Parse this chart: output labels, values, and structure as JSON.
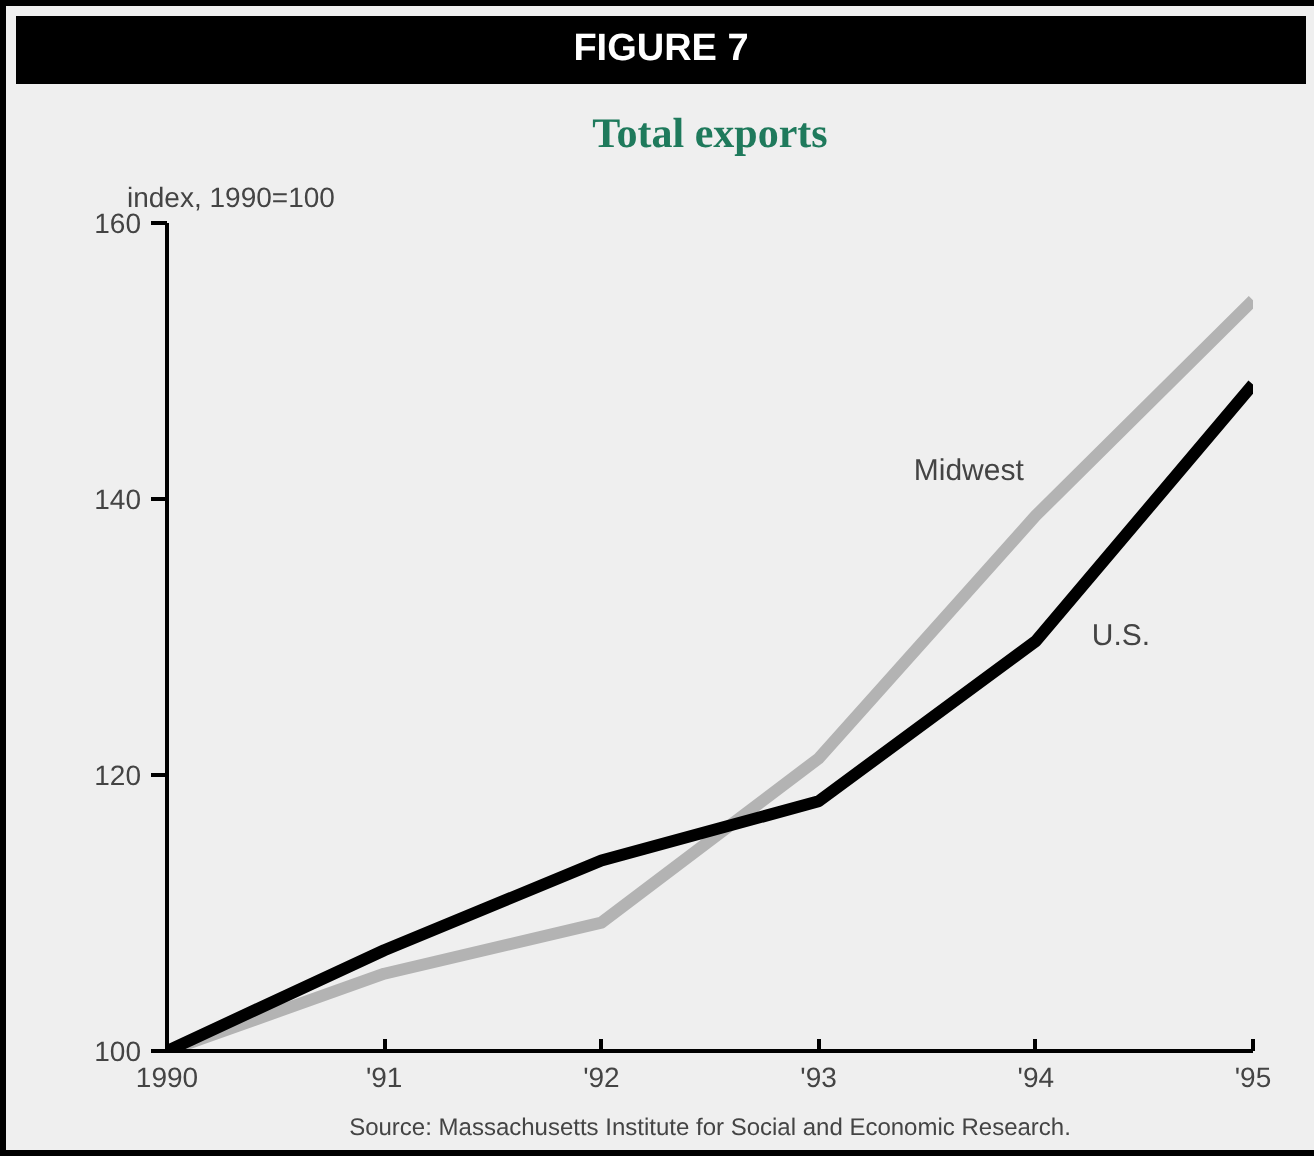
{
  "chart_data": {
    "type": "line",
    "title": "FIGURE 7",
    "subtitle": "Total exports",
    "ylabel": "index, 1990=100",
    "x": [
      1990,
      1991,
      1992,
      1993,
      1994,
      1995
    ],
    "series": [
      {
        "name": "Midwest",
        "color": "#b3b3b3",
        "values": [
          100,
          105.6,
          109.3,
          121.2,
          138.8,
          154.4
        ]
      },
      {
        "name": "U.S.",
        "color": "#000000",
        "values": [
          100,
          107.3,
          113.8,
          118.1,
          129.7,
          148.3
        ]
      }
    ],
    "xlim": [
      1990,
      1995
    ],
    "xticks": [
      1990,
      {
        "value": 1991,
        "label": "'91"
      },
      {
        "value": 1992,
        "label": "'92"
      },
      {
        "value": 1993,
        "label": "'93"
      },
      {
        "value": 1994,
        "label": "'94"
      },
      {
        "value": 1995,
        "label": "'95"
      }
    ],
    "ylim": [
      100,
      160
    ],
    "yticks": [
      100,
      120,
      140,
      160
    ],
    "grid": false,
    "marker": "none",
    "line_style": "solid",
    "annotations": [
      "Source: Massachusetts Institute for Social and Economic Research."
    ]
  }
}
